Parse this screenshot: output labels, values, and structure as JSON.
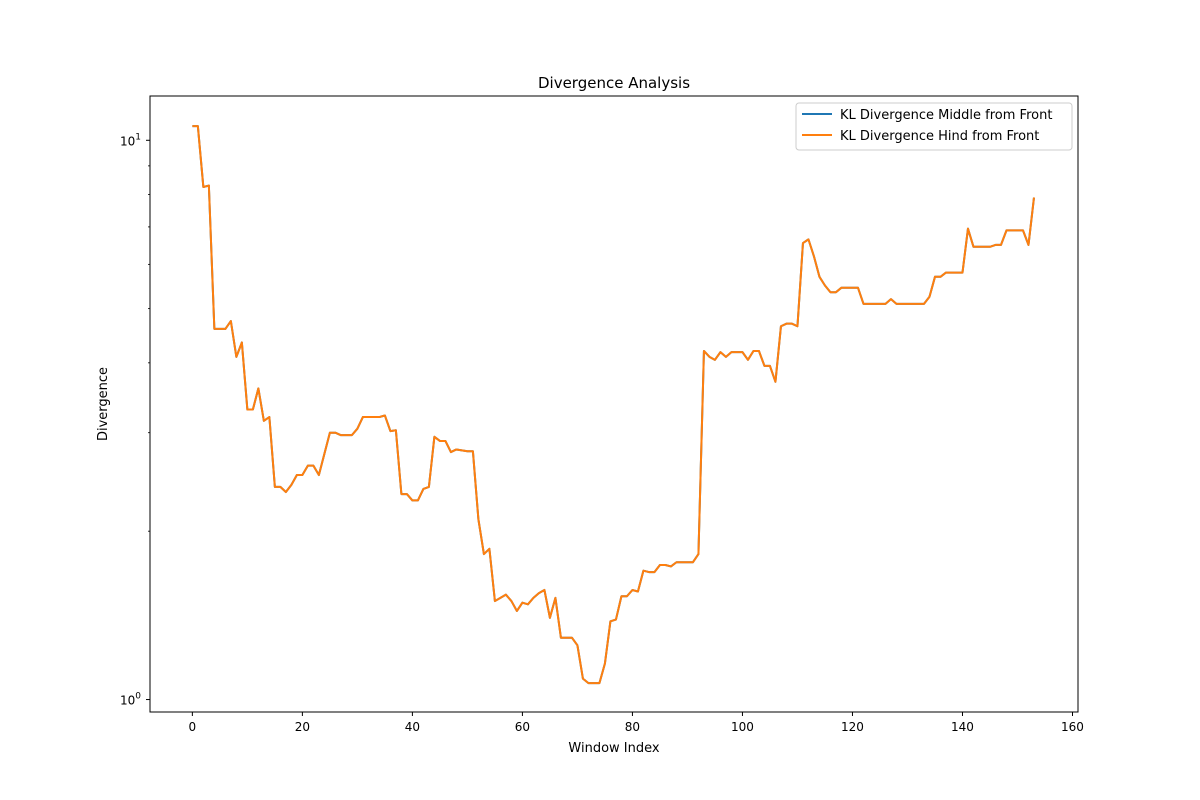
{
  "chart_data": {
    "type": "line",
    "title": "Divergence Analysis",
    "xlabel": "Window Index",
    "ylabel": "Divergence",
    "yscale": "log",
    "xlim": [
      -7.7,
      161
    ],
    "ylim": [
      0.95,
      12
    ],
    "xticks": [
      0,
      20,
      40,
      60,
      80,
      100,
      120,
      140,
      160
    ],
    "yticks": [
      {
        "value": 1,
        "base": "10",
        "exp": "0"
      },
      {
        "value": 10,
        "base": "10",
        "exp": "1"
      }
    ],
    "grid": false,
    "legend_position": "top-right",
    "series": [
      {
        "name": "KL Divergence Middle from Front",
        "color": "#1f77b4",
        "x": [
          0,
          1,
          2,
          3,
          4,
          5,
          6,
          7,
          8,
          9,
          10,
          11,
          12,
          13,
          14,
          15,
          16,
          17,
          18,
          19,
          20,
          21,
          22,
          23,
          24,
          25,
          26,
          27,
          28,
          29,
          30,
          31,
          32,
          33,
          34,
          35,
          36,
          37,
          38,
          39,
          40,
          41,
          42,
          43,
          44,
          45,
          46,
          47,
          48,
          49,
          50,
          51,
          52,
          53,
          54,
          55,
          56,
          57,
          58,
          59,
          60,
          61,
          62,
          63,
          64,
          65,
          66,
          67,
          68,
          69,
          70,
          71,
          72,
          73,
          74,
          75,
          76,
          77,
          78,
          79,
          80,
          81,
          82,
          83,
          84,
          85,
          86,
          87,
          88,
          89,
          90,
          91,
          92,
          93,
          94,
          95,
          96,
          97,
          98,
          99,
          100,
          101,
          102,
          103,
          104,
          105,
          106,
          107,
          108,
          109,
          110,
          111,
          112,
          113,
          114,
          115,
          116,
          117,
          118,
          119,
          120,
          121,
          122,
          123,
          124,
          125,
          126,
          127,
          128,
          129,
          130,
          131,
          132,
          133,
          134,
          135,
          136,
          137,
          138,
          139,
          140,
          141,
          142,
          143,
          144,
          145,
          146,
          147,
          148,
          149,
          150,
          151,
          152,
          153
        ],
        "values": [
          10.6,
          10.6,
          8.25,
          8.3,
          4.6,
          4.6,
          4.6,
          4.75,
          4.1,
          4.35,
          3.3,
          3.3,
          3.6,
          3.15,
          3.2,
          2.4,
          2.4,
          2.35,
          2.42,
          2.52,
          2.52,
          2.62,
          2.62,
          2.52,
          2.75,
          3.0,
          3.0,
          2.97,
          2.97,
          2.97,
          3.05,
          3.2,
          3.2,
          3.2,
          3.2,
          3.22,
          3.02,
          3.03,
          2.33,
          2.33,
          2.27,
          2.27,
          2.38,
          2.4,
          2.95,
          2.9,
          2.9,
          2.77,
          2.8,
          2.79,
          2.78,
          2.78,
          2.1,
          1.82,
          1.86,
          1.5,
          1.52,
          1.54,
          1.5,
          1.44,
          1.49,
          1.48,
          1.52,
          1.55,
          1.57,
          1.4,
          1.52,
          1.29,
          1.29,
          1.29,
          1.25,
          1.09,
          1.07,
          1.07,
          1.07,
          1.16,
          1.38,
          1.39,
          1.53,
          1.53,
          1.57,
          1.56,
          1.7,
          1.69,
          1.69,
          1.74,
          1.74,
          1.73,
          1.76,
          1.76,
          1.76,
          1.76,
          1.82,
          4.2,
          4.1,
          4.05,
          4.18,
          4.1,
          4.18,
          4.18,
          4.18,
          4.05,
          4.2,
          4.2,
          3.95,
          3.95,
          3.7,
          4.65,
          4.7,
          4.7,
          4.65,
          6.55,
          6.65,
          6.2,
          5.7,
          5.5,
          5.35,
          5.35,
          5.45,
          5.45,
          5.45,
          5.45,
          5.1,
          5.1,
          5.1,
          5.1,
          5.1,
          5.2,
          5.1,
          5.1,
          5.1,
          5.1,
          5.1,
          5.1,
          5.25,
          5.7,
          5.7,
          5.8,
          5.8,
          5.8,
          5.8,
          6.95,
          6.45,
          6.45,
          6.45,
          6.45,
          6.5,
          6.5,
          6.9,
          6.9,
          6.9,
          6.9,
          6.5,
          7.9
        ]
      },
      {
        "name": "KL Divergence Hind from Front",
        "color": "#ff7f0e",
        "x": [
          0,
          1,
          2,
          3,
          4,
          5,
          6,
          7,
          8,
          9,
          10,
          11,
          12,
          13,
          14,
          15,
          16,
          17,
          18,
          19,
          20,
          21,
          22,
          23,
          24,
          25,
          26,
          27,
          28,
          29,
          30,
          31,
          32,
          33,
          34,
          35,
          36,
          37,
          38,
          39,
          40,
          41,
          42,
          43,
          44,
          45,
          46,
          47,
          48,
          49,
          50,
          51,
          52,
          53,
          54,
          55,
          56,
          57,
          58,
          59,
          60,
          61,
          62,
          63,
          64,
          65,
          66,
          67,
          68,
          69,
          70,
          71,
          72,
          73,
          74,
          75,
          76,
          77,
          78,
          79,
          80,
          81,
          82,
          83,
          84,
          85,
          86,
          87,
          88,
          89,
          90,
          91,
          92,
          93,
          94,
          95,
          96,
          97,
          98,
          99,
          100,
          101,
          102,
          103,
          104,
          105,
          106,
          107,
          108,
          109,
          110,
          111,
          112,
          113,
          114,
          115,
          116,
          117,
          118,
          119,
          120,
          121,
          122,
          123,
          124,
          125,
          126,
          127,
          128,
          129,
          130,
          131,
          132,
          133,
          134,
          135,
          136,
          137,
          138,
          139,
          140,
          141,
          142,
          143,
          144,
          145,
          146,
          147,
          148,
          149,
          150,
          151,
          152,
          153
        ],
        "values": [
          10.6,
          10.6,
          8.25,
          8.3,
          4.6,
          4.6,
          4.6,
          4.75,
          4.1,
          4.35,
          3.3,
          3.3,
          3.6,
          3.15,
          3.2,
          2.4,
          2.4,
          2.35,
          2.42,
          2.52,
          2.52,
          2.62,
          2.62,
          2.52,
          2.75,
          3.0,
          3.0,
          2.97,
          2.97,
          2.97,
          3.05,
          3.2,
          3.2,
          3.2,
          3.2,
          3.22,
          3.02,
          3.03,
          2.33,
          2.33,
          2.27,
          2.27,
          2.38,
          2.4,
          2.95,
          2.9,
          2.9,
          2.77,
          2.8,
          2.79,
          2.78,
          2.78,
          2.1,
          1.82,
          1.86,
          1.5,
          1.52,
          1.54,
          1.5,
          1.44,
          1.49,
          1.48,
          1.52,
          1.55,
          1.57,
          1.4,
          1.52,
          1.29,
          1.29,
          1.29,
          1.25,
          1.09,
          1.07,
          1.07,
          1.07,
          1.16,
          1.38,
          1.39,
          1.53,
          1.53,
          1.57,
          1.56,
          1.7,
          1.69,
          1.69,
          1.74,
          1.74,
          1.73,
          1.76,
          1.76,
          1.76,
          1.76,
          1.82,
          4.2,
          4.1,
          4.05,
          4.18,
          4.1,
          4.18,
          4.18,
          4.18,
          4.05,
          4.2,
          4.2,
          3.95,
          3.95,
          3.7,
          4.65,
          4.7,
          4.7,
          4.65,
          6.55,
          6.65,
          6.2,
          5.7,
          5.5,
          5.35,
          5.35,
          5.45,
          5.45,
          5.45,
          5.45,
          5.1,
          5.1,
          5.1,
          5.1,
          5.1,
          5.2,
          5.1,
          5.1,
          5.1,
          5.1,
          5.1,
          5.1,
          5.25,
          5.7,
          5.7,
          5.8,
          5.8,
          5.8,
          5.8,
          6.95,
          6.45,
          6.45,
          6.45,
          6.45,
          6.5,
          6.5,
          6.9,
          6.9,
          6.9,
          6.9,
          6.5,
          7.9
        ]
      }
    ]
  }
}
